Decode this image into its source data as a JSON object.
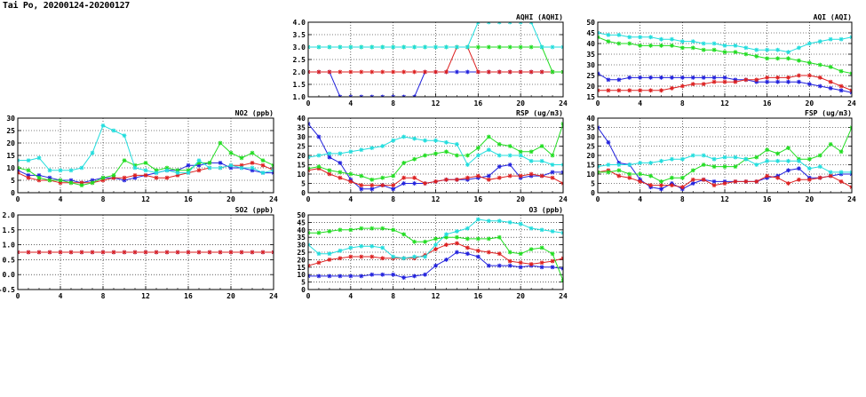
{
  "page": {
    "title": "Tai Po, 20200124-20200127"
  },
  "colors": {
    "series1": "#2222dd",
    "series2": "#dd2222",
    "series3": "#22dd22",
    "series4": "#22dddd"
  },
  "chart_data": [
    {
      "id": "no2",
      "type": "line",
      "title": "NO2 (ppb)",
      "xlim": [
        0,
        24
      ],
      "ylim": [
        0,
        30
      ],
      "xticks": [
        "0",
        "4",
        "8",
        "12",
        "16",
        "20",
        "24"
      ],
      "yticks": [
        "0",
        "5",
        "10",
        "15",
        "20",
        "25",
        "30"
      ],
      "series": [
        {
          "values": [
            9,
            7,
            7,
            6,
            5,
            5,
            4,
            5,
            6,
            6,
            5,
            6,
            7,
            8,
            9,
            9,
            11,
            11,
            12,
            12,
            10,
            10,
            9,
            8,
            8
          ],
          "color": "#2222dd"
        },
        {
          "values": [
            8,
            6,
            5,
            5,
            4,
            4,
            4,
            4,
            5,
            6,
            6,
            7,
            7,
            6,
            6,
            7,
            8,
            9,
            10,
            10,
            11,
            11,
            12,
            11,
            9
          ],
          "color": "#dd2222"
        },
        {
          "values": [
            10,
            9,
            6,
            5,
            5,
            4,
            3,
            4,
            6,
            7,
            13,
            11,
            12,
            9,
            10,
            9,
            9,
            12,
            12,
            20,
            16,
            14,
            16,
            13,
            11
          ],
          "color": "#22dd22"
        },
        {
          "values": [
            13,
            13,
            14,
            9,
            9,
            9,
            10,
            16,
            27,
            25,
            23,
            10,
            9,
            8,
            9,
            8,
            8,
            13,
            10,
            10,
            11,
            10,
            10,
            8,
            9
          ],
          "color": "#22dddd"
        }
      ]
    },
    {
      "id": "so2",
      "type": "line",
      "title": "SO2 (ppb)",
      "xlim": [
        0,
        24
      ],
      "ylim": [
        -0.5,
        2.0
      ],
      "xticks": [
        "0",
        "4",
        "8",
        "12",
        "16",
        "20",
        "24"
      ],
      "yticks": [
        "-0.5",
        "0.0",
        "0.5",
        "1.0",
        "1.5",
        "2.0"
      ],
      "series": [
        {
          "values": [
            0.75,
            0.75,
            0.75,
            0.75,
            0.75,
            0.75,
            0.75,
            0.75,
            0.75,
            0.75,
            0.75,
            0.75,
            0.75,
            0.75,
            0.75,
            0.75,
            0.75,
            0.75,
            0.75,
            0.75,
            0.75,
            0.75,
            0.75,
            0.75,
            0.75
          ],
          "color": "#2222dd"
        },
        {
          "values": [
            0.75,
            0.75,
            0.75,
            0.75,
            0.75,
            0.75,
            0.75,
            0.75,
            0.75,
            0.75,
            0.75,
            0.75,
            0.75,
            0.75,
            0.75,
            0.75,
            0.75,
            0.75,
            0.75,
            0.75,
            0.75,
            0.75,
            0.75,
            0.75,
            0.75
          ],
          "color": "#dd2222"
        }
      ]
    },
    {
      "id": "aqhi",
      "type": "line",
      "title": "AQHI (AQHI)",
      "xlim": [
        0,
        24
      ],
      "ylim": [
        1.0,
        4.0
      ],
      "xticks": [
        "0",
        "4",
        "8",
        "12",
        "16",
        "20",
        "24"
      ],
      "yticks": [
        "1.0",
        "1.5",
        "2.0",
        "2.5",
        "3.0",
        "3.5",
        "4.0"
      ],
      "series": [
        {
          "values": [
            2,
            2,
            2,
            1,
            1,
            1,
            1,
            1,
            1,
            1,
            1,
            2,
            2,
            2,
            2,
            2,
            2,
            2,
            2,
            2,
            2,
            2,
            2,
            2,
            2
          ],
          "color": "#2222dd"
        },
        {
          "values": [
            2,
            2,
            2,
            2,
            2,
            2,
            2,
            2,
            2,
            2,
            2,
            2,
            2,
            2,
            3,
            3,
            2,
            2,
            2,
            2,
            2,
            2,
            2,
            2,
            2
          ],
          "color": "#dd2222"
        },
        {
          "values": [
            3,
            3,
            3,
            3,
            3,
            3,
            3,
            3,
            3,
            3,
            3,
            3,
            3,
            3,
            3,
            3,
            3,
            3,
            3,
            3,
            3,
            3,
            3,
            2,
            2
          ],
          "color": "#22dd22"
        },
        {
          "values": [
            3,
            3,
            3,
            3,
            3,
            3,
            3,
            3,
            3,
            3,
            3,
            3,
            3,
            3,
            3,
            3,
            4,
            4,
            4,
            4,
            4,
            4,
            3,
            3,
            3
          ],
          "color": "#22dddd"
        }
      ]
    },
    {
      "id": "rsp",
      "type": "line",
      "title": "RSP (ug/m3)",
      "xlim": [
        0,
        24
      ],
      "ylim": [
        0,
        40
      ],
      "xticks": [
        "0",
        "4",
        "8",
        "12",
        "16",
        "20",
        "24"
      ],
      "yticks": [
        "0",
        "5",
        "10",
        "15",
        "20",
        "25",
        "30",
        "35",
        "40"
      ],
      "series": [
        {
          "values": [
            37,
            30,
            19,
            16,
            7,
            2,
            2,
            4,
            2,
            5,
            5,
            5,
            6,
            7,
            7,
            7,
            8,
            9,
            14,
            15,
            8,
            9,
            9,
            11,
            11
          ],
          "color": "#2222dd"
        },
        {
          "values": [
            12,
            13,
            10,
            8,
            6,
            4,
            4,
            4,
            4,
            8,
            8,
            5,
            6,
            7,
            7,
            8,
            9,
            7,
            8,
            9,
            9,
            10,
            9,
            8,
            5
          ],
          "color": "#dd2222"
        },
        {
          "values": [
            13,
            14,
            12,
            11,
            10,
            9,
            7,
            8,
            9,
            16,
            18,
            20,
            21,
            22,
            20,
            20,
            24,
            30,
            26,
            25,
            22,
            22,
            25,
            20,
            37
          ],
          "color": "#22dd22"
        },
        {
          "values": [
            19,
            20,
            21,
            21,
            22,
            23,
            24,
            25,
            28,
            30,
            29,
            28,
            28,
            27,
            26,
            15,
            20,
            23,
            20,
            20,
            20,
            17,
            17,
            15,
            15
          ],
          "color": "#22dddd"
        }
      ]
    },
    {
      "id": "o3",
      "type": "line",
      "title": "O3 (ppb)",
      "xlim": [
        0,
        24
      ],
      "ylim": [
        0,
        50
      ],
      "xticks": [
        "0",
        "4",
        "8",
        "12",
        "16",
        "20",
        "24"
      ],
      "yticks": [
        "0",
        "5",
        "10",
        "15",
        "20",
        "25",
        "30",
        "35",
        "40",
        "45",
        "50"
      ],
      "series": [
        {
          "values": [
            9,
            9,
            9,
            9,
            9,
            9,
            10,
            10,
            10,
            8,
            9,
            10,
            16,
            20,
            25,
            24,
            22,
            16,
            16,
            16,
            15,
            16,
            15,
            15,
            14
          ],
          "color": "#2222dd"
        },
        {
          "values": [
            16,
            18,
            20,
            21,
            22,
            22,
            22,
            21,
            21,
            21,
            21,
            23,
            27,
            30,
            31,
            28,
            26,
            25,
            24,
            19,
            18,
            17,
            18,
            19,
            21
          ],
          "color": "#dd2222"
        },
        {
          "values": [
            38,
            38,
            39,
            40,
            40,
            41,
            41,
            41,
            40,
            37,
            32,
            32,
            34,
            35,
            35,
            34,
            34,
            34,
            35,
            25,
            24,
            27,
            28,
            24,
            6
          ],
          "color": "#22dd22"
        },
        {
          "values": [
            30,
            24,
            24,
            26,
            28,
            29,
            29,
            28,
            22,
            21,
            22,
            22,
            30,
            37,
            39,
            41,
            47,
            46,
            46,
            45,
            44,
            41,
            40,
            39,
            38
          ],
          "color": "#22dddd"
        }
      ]
    },
    {
      "id": "aqi",
      "type": "line",
      "title": "AQI (AQI)",
      "xlim": [
        0,
        24
      ],
      "ylim": [
        15,
        50
      ],
      "xticks": [
        "0",
        "4",
        "8",
        "12",
        "16",
        "20",
        "24"
      ],
      "yticks": [
        "15",
        "20",
        "25",
        "30",
        "35",
        "40",
        "45",
        "50"
      ],
      "series": [
        {
          "values": [
            26,
            23,
            23,
            24,
            24,
            24,
            24,
            24,
            24,
            24,
            24,
            24,
            24,
            23,
            23,
            22,
            22,
            22,
            22,
            22,
            21,
            20,
            19,
            18,
            17
          ],
          "color": "#2222dd"
        },
        {
          "values": [
            18,
            18,
            18,
            18,
            18,
            18,
            18,
            19,
            20,
            21,
            21,
            22,
            22,
            22,
            23,
            23,
            24,
            24,
            24,
            25,
            25,
            24,
            22,
            20,
            18
          ],
          "color": "#dd2222"
        },
        {
          "values": [
            43,
            41,
            40,
            40,
            39,
            39,
            39,
            39,
            38,
            38,
            37,
            37,
            36,
            36,
            35,
            34,
            33,
            33,
            33,
            32,
            31,
            30,
            29,
            27,
            26
          ],
          "color": "#22dd22"
        },
        {
          "values": [
            45,
            44,
            44,
            43,
            43,
            43,
            42,
            42,
            41,
            41,
            40,
            40,
            39,
            39,
            38,
            37,
            37,
            37,
            36,
            38,
            40,
            41,
            42,
            42,
            43
          ],
          "color": "#22dddd"
        }
      ]
    },
    {
      "id": "fsp",
      "type": "line",
      "title": "FSP (ug/m3)",
      "xlim": [
        0,
        24
      ],
      "ylim": [
        0,
        40
      ],
      "xticks": [
        "0",
        "4",
        "8",
        "12",
        "16",
        "20",
        "24"
      ],
      "yticks": [
        "0",
        "5",
        "10",
        "15",
        "20",
        "25",
        "30",
        "35",
        "40"
      ],
      "series": [
        {
          "values": [
            35,
            27,
            16,
            15,
            7,
            3,
            2,
            5,
            2,
            5,
            7,
            6,
            6,
            6,
            6,
            6,
            8,
            9,
            12,
            13,
            8,
            8,
            9,
            10,
            10
          ],
          "color": "#2222dd"
        },
        {
          "values": [
            11,
            12,
            9,
            8,
            6,
            4,
            4,
            4,
            3,
            7,
            7,
            4,
            5,
            6,
            6,
            6,
            9,
            8,
            5,
            7,
            7,
            8,
            9,
            6,
            3
          ],
          "color": "#dd2222"
        },
        {
          "values": [
            11,
            11,
            12,
            10,
            10,
            9,
            6,
            8,
            8,
            12,
            15,
            14,
            14,
            14,
            18,
            19,
            23,
            21,
            24,
            18,
            18,
            20,
            26,
            22,
            35
          ],
          "color": "#22dd22"
        },
        {
          "values": [
            14,
            15,
            15,
            15,
            16,
            16,
            17,
            18,
            18,
            20,
            20,
            18,
            19,
            19,
            18,
            15,
            17,
            17,
            17,
            17,
            13,
            14,
            11,
            11,
            11
          ],
          "color": "#22dddd"
        }
      ]
    }
  ]
}
